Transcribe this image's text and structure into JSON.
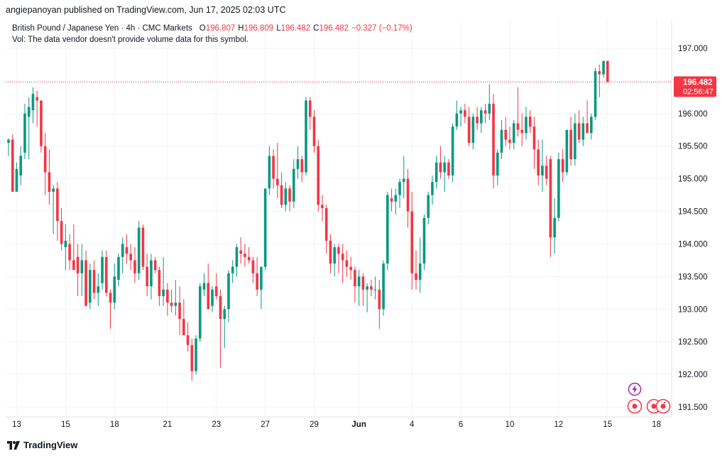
{
  "header": {
    "publisher_line": "angiepanoyan published on TradingView.com, Jun 17, 2025 02:03 UTC"
  },
  "legend": {
    "symbol": "British Pound / Japanese Yen · 4h · CMC Markets",
    "o_label": "O",
    "o_value": "196.807",
    "h_label": "H",
    "h_value": "196.809",
    "l_label": "L",
    "l_value": "196.482",
    "c_label": "C",
    "c_value": "196.482",
    "change": "−0.327 (−0.17%)",
    "vol_line": "Vol: The data vendor doesn't provide volume data for this symbol."
  },
  "price_label": {
    "price": "196.482",
    "countdown": "02:56:47"
  },
  "footer": {
    "brand": "TradingView"
  },
  "colors": {
    "up": "#089981",
    "down": "#f23645",
    "grid": "#f0f3fa",
    "axis_text": "#131722",
    "events": "#f23645",
    "dividend": "#9c27b0"
  },
  "chart_data": {
    "type": "candlestick",
    "title": "British Pound / Japanese Yen · 4h · CMC Markets",
    "ylim": [
      191.35,
      197.35
    ],
    "y_ticks": [
      "197.000",
      "196.500",
      "196.000",
      "195.500",
      "195.000",
      "194.500",
      "194.000",
      "193.500",
      "193.000",
      "192.500",
      "192.000",
      "191.500"
    ],
    "y_tick_values": [
      197.0,
      196.5,
      196.0,
      195.5,
      195.0,
      194.5,
      194.0,
      193.5,
      193.0,
      192.5,
      192.0,
      191.5
    ],
    "x_ticks": [
      {
        "label": "13",
        "index": 2
      },
      {
        "label": "15",
        "index": 14
      },
      {
        "label": "18",
        "index": 26
      },
      {
        "label": "21",
        "index": 39
      },
      {
        "label": "23",
        "index": 51
      },
      {
        "label": "27",
        "index": 63
      },
      {
        "label": "29",
        "index": 75
      },
      {
        "label": "Jun",
        "index": 86
      },
      {
        "label": "4",
        "index": 99
      },
      {
        "label": "6",
        "index": 111
      },
      {
        "label": "10",
        "index": 123
      },
      {
        "label": "12",
        "index": 135
      },
      {
        "label": "15",
        "index": 147
      },
      {
        "label": "18",
        "index": 159
      }
    ],
    "last_price": 196.482,
    "candles": [
      {
        "o": 195.55,
        "h": 195.62,
        "l": 195.35,
        "c": 195.6
      },
      {
        "o": 195.6,
        "h": 195.68,
        "l": 194.8,
        "c": 194.8
      },
      {
        "o": 194.8,
        "h": 195.25,
        "l": 194.8,
        "c": 195.15
      },
      {
        "o": 195.05,
        "h": 195.5,
        "l": 194.9,
        "c": 195.35
      },
      {
        "o": 195.4,
        "h": 196.15,
        "l": 195.3,
        "c": 196.0
      },
      {
        "o": 195.95,
        "h": 196.25,
        "l": 195.3,
        "c": 196.1
      },
      {
        "o": 196.05,
        "h": 196.4,
        "l": 195.85,
        "c": 196.3
      },
      {
        "o": 196.25,
        "h": 196.35,
        "l": 195.8,
        "c": 196.2
      },
      {
        "o": 196.2,
        "h": 196.2,
        "l": 195.4,
        "c": 195.5
      },
      {
        "o": 195.5,
        "h": 195.7,
        "l": 194.75,
        "c": 195.1
      },
      {
        "o": 195.1,
        "h": 195.45,
        "l": 194.6,
        "c": 194.8
      },
      {
        "o": 194.8,
        "h": 194.9,
        "l": 194.15,
        "c": 194.85
      },
      {
        "o": 194.85,
        "h": 194.95,
        "l": 194.05,
        "c": 194.35
      },
      {
        "o": 194.35,
        "h": 194.55,
        "l": 193.9,
        "c": 194.0
      },
      {
        "o": 193.95,
        "h": 194.3,
        "l": 193.6,
        "c": 194.05
      },
      {
        "o": 194.0,
        "h": 194.15,
        "l": 193.6,
        "c": 193.75
      },
      {
        "o": 193.75,
        "h": 194.3,
        "l": 193.6,
        "c": 193.6
      },
      {
        "o": 193.8,
        "h": 194.0,
        "l": 193.2,
        "c": 193.55
      },
      {
        "o": 193.55,
        "h": 194.0,
        "l": 193.2,
        "c": 193.75
      },
      {
        "o": 193.75,
        "h": 193.9,
        "l": 193.05,
        "c": 193.05
      },
      {
        "o": 193.1,
        "h": 193.7,
        "l": 193.0,
        "c": 193.6
      },
      {
        "o": 193.6,
        "h": 193.75,
        "l": 193.15,
        "c": 193.25
      },
      {
        "o": 193.25,
        "h": 193.55,
        "l": 193.05,
        "c": 193.35
      },
      {
        "o": 193.4,
        "h": 193.9,
        "l": 193.3,
        "c": 193.8
      },
      {
        "o": 193.8,
        "h": 193.9,
        "l": 193.2,
        "c": 193.25
      },
      {
        "o": 193.25,
        "h": 193.3,
        "l": 192.7,
        "c": 193.1
      },
      {
        "o": 193.1,
        "h": 193.7,
        "l": 193.0,
        "c": 193.5
      },
      {
        "o": 193.45,
        "h": 193.85,
        "l": 193.35,
        "c": 193.8
      },
      {
        "o": 193.8,
        "h": 194.1,
        "l": 193.55,
        "c": 194.0
      },
      {
        "o": 193.95,
        "h": 194.15,
        "l": 193.7,
        "c": 193.85
      },
      {
        "o": 193.85,
        "h": 194.0,
        "l": 193.6,
        "c": 193.75
      },
      {
        "o": 193.75,
        "h": 193.95,
        "l": 193.4,
        "c": 193.55
      },
      {
        "o": 193.55,
        "h": 194.35,
        "l": 193.45,
        "c": 194.25
      },
      {
        "o": 194.25,
        "h": 194.3,
        "l": 193.6,
        "c": 193.65
      },
      {
        "o": 193.65,
        "h": 193.85,
        "l": 193.2,
        "c": 193.35
      },
      {
        "o": 193.35,
        "h": 193.85,
        "l": 193.15,
        "c": 193.75
      },
      {
        "o": 193.75,
        "h": 193.8,
        "l": 193.55,
        "c": 193.6
      },
      {
        "o": 193.6,
        "h": 193.65,
        "l": 193.05,
        "c": 193.2
      },
      {
        "o": 193.2,
        "h": 193.8,
        "l": 193.05,
        "c": 193.3
      },
      {
        "o": 193.3,
        "h": 193.4,
        "l": 192.9,
        "c": 193.1
      },
      {
        "o": 193.1,
        "h": 193.3,
        "l": 192.95,
        "c": 193.05
      },
      {
        "o": 193.05,
        "h": 193.45,
        "l": 192.9,
        "c": 193.1
      },
      {
        "o": 193.1,
        "h": 193.35,
        "l": 192.6,
        "c": 192.85
      },
      {
        "o": 192.85,
        "h": 193.15,
        "l": 192.6,
        "c": 192.6
      },
      {
        "o": 192.6,
        "h": 192.8,
        "l": 192.35,
        "c": 192.45
      },
      {
        "o": 192.45,
        "h": 192.55,
        "l": 191.9,
        "c": 192.05
      },
      {
        "o": 192.05,
        "h": 192.6,
        "l": 192.0,
        "c": 192.55
      },
      {
        "o": 192.55,
        "h": 193.4,
        "l": 192.5,
        "c": 193.35
      },
      {
        "o": 193.3,
        "h": 193.55,
        "l": 193.2,
        "c": 193.4
      },
      {
        "o": 193.4,
        "h": 193.7,
        "l": 193.0,
        "c": 193.0
      },
      {
        "o": 193.05,
        "h": 193.35,
        "l": 192.95,
        "c": 193.3
      },
      {
        "o": 193.35,
        "h": 193.55,
        "l": 193.15,
        "c": 193.2
      },
      {
        "o": 193.2,
        "h": 193.3,
        "l": 192.1,
        "c": 192.85
      },
      {
        "o": 192.85,
        "h": 193.05,
        "l": 192.4,
        "c": 193.0
      },
      {
        "o": 193.0,
        "h": 193.6,
        "l": 192.8,
        "c": 193.55
      },
      {
        "o": 193.55,
        "h": 193.75,
        "l": 193.4,
        "c": 193.65
      },
      {
        "o": 193.65,
        "h": 194.0,
        "l": 193.5,
        "c": 193.95
      },
      {
        "o": 193.9,
        "h": 194.1,
        "l": 193.7,
        "c": 193.85
      },
      {
        "o": 193.85,
        "h": 194.0,
        "l": 193.65,
        "c": 193.8
      },
      {
        "o": 193.8,
        "h": 193.95,
        "l": 193.7,
        "c": 193.75
      },
      {
        "o": 193.75,
        "h": 193.8,
        "l": 193.4,
        "c": 193.55
      },
      {
        "o": 193.55,
        "h": 193.8,
        "l": 193.2,
        "c": 193.3
      },
      {
        "o": 193.3,
        "h": 193.65,
        "l": 193.0,
        "c": 193.65
      },
      {
        "o": 193.65,
        "h": 194.85,
        "l": 193.6,
        "c": 194.85
      },
      {
        "o": 194.85,
        "h": 195.5,
        "l": 194.75,
        "c": 195.35
      },
      {
        "o": 195.35,
        "h": 195.45,
        "l": 194.85,
        "c": 195.0
      },
      {
        "o": 195.0,
        "h": 195.55,
        "l": 194.7,
        "c": 194.9
      },
      {
        "o": 194.9,
        "h": 195.1,
        "l": 194.55,
        "c": 194.6
      },
      {
        "o": 194.6,
        "h": 194.95,
        "l": 194.5,
        "c": 194.85
      },
      {
        "o": 194.85,
        "h": 194.9,
        "l": 194.5,
        "c": 194.65
      },
      {
        "o": 194.65,
        "h": 195.3,
        "l": 194.55,
        "c": 195.15
      },
      {
        "o": 195.15,
        "h": 195.5,
        "l": 195.0,
        "c": 195.3
      },
      {
        "o": 195.3,
        "h": 195.35,
        "l": 194.95,
        "c": 195.1
      },
      {
        "o": 195.1,
        "h": 196.25,
        "l": 195.05,
        "c": 196.2
      },
      {
        "o": 196.2,
        "h": 196.25,
        "l": 195.75,
        "c": 195.95
      },
      {
        "o": 195.95,
        "h": 196.05,
        "l": 195.4,
        "c": 195.5
      },
      {
        "o": 195.5,
        "h": 195.6,
        "l": 194.5,
        "c": 194.6
      },
      {
        "o": 194.6,
        "h": 194.75,
        "l": 194.35,
        "c": 194.55
      },
      {
        "o": 194.55,
        "h": 194.6,
        "l": 193.85,
        "c": 194.05
      },
      {
        "o": 194.05,
        "h": 194.15,
        "l": 193.55,
        "c": 193.7
      },
      {
        "o": 193.7,
        "h": 194.0,
        "l": 193.5,
        "c": 193.95
      },
      {
        "o": 193.95,
        "h": 194.0,
        "l": 193.55,
        "c": 193.85
      },
      {
        "o": 193.85,
        "h": 194.0,
        "l": 193.4,
        "c": 193.75
      },
      {
        "o": 193.75,
        "h": 193.9,
        "l": 193.5,
        "c": 193.65
      },
      {
        "o": 193.65,
        "h": 193.8,
        "l": 193.45,
        "c": 193.6
      },
      {
        "o": 193.6,
        "h": 193.65,
        "l": 193.1,
        "c": 193.35
      },
      {
        "o": 193.35,
        "h": 193.6,
        "l": 193.05,
        "c": 193.5
      },
      {
        "o": 193.5,
        "h": 193.55,
        "l": 193.05,
        "c": 193.3
      },
      {
        "o": 193.3,
        "h": 193.4,
        "l": 192.95,
        "c": 193.35
      },
      {
        "o": 193.35,
        "h": 193.45,
        "l": 193.2,
        "c": 193.3
      },
      {
        "o": 193.3,
        "h": 193.5,
        "l": 193.15,
        "c": 193.3
      },
      {
        "o": 193.3,
        "h": 193.45,
        "l": 192.7,
        "c": 193.0
      },
      {
        "o": 193.0,
        "h": 193.75,
        "l": 192.9,
        "c": 193.7
      },
      {
        "o": 193.7,
        "h": 194.8,
        "l": 193.6,
        "c": 194.75
      },
      {
        "o": 194.7,
        "h": 194.85,
        "l": 194.5,
        "c": 194.65
      },
      {
        "o": 194.65,
        "h": 194.85,
        "l": 194.45,
        "c": 194.75
      },
      {
        "o": 194.75,
        "h": 195.0,
        "l": 194.55,
        "c": 194.95
      },
      {
        "o": 194.95,
        "h": 195.35,
        "l": 194.7,
        "c": 195.0
      },
      {
        "o": 195.0,
        "h": 195.15,
        "l": 194.25,
        "c": 194.5
      },
      {
        "o": 194.5,
        "h": 194.8,
        "l": 193.3,
        "c": 193.55
      },
      {
        "o": 193.55,
        "h": 193.9,
        "l": 193.3,
        "c": 193.45
      },
      {
        "o": 193.45,
        "h": 194.1,
        "l": 193.25,
        "c": 193.7
      },
      {
        "o": 193.7,
        "h": 194.45,
        "l": 193.6,
        "c": 194.4
      },
      {
        "o": 194.4,
        "h": 194.8,
        "l": 194.3,
        "c": 194.75
      },
      {
        "o": 194.75,
        "h": 195.05,
        "l": 194.6,
        "c": 194.95
      },
      {
        "o": 194.95,
        "h": 195.35,
        "l": 194.85,
        "c": 195.25
      },
      {
        "o": 195.25,
        "h": 195.5,
        "l": 195.0,
        "c": 195.1
      },
      {
        "o": 195.1,
        "h": 195.35,
        "l": 194.8,
        "c": 195.25
      },
      {
        "o": 195.25,
        "h": 195.3,
        "l": 195.0,
        "c": 195.05
      },
      {
        "o": 195.05,
        "h": 195.85,
        "l": 194.95,
        "c": 195.8
      },
      {
        "o": 195.8,
        "h": 196.2,
        "l": 195.75,
        "c": 196.0
      },
      {
        "o": 196.0,
        "h": 196.1,
        "l": 195.8,
        "c": 196.05
      },
      {
        "o": 196.05,
        "h": 196.15,
        "l": 195.85,
        "c": 195.95
      },
      {
        "o": 195.95,
        "h": 196.1,
        "l": 195.5,
        "c": 195.55
      },
      {
        "o": 195.55,
        "h": 196.0,
        "l": 195.45,
        "c": 195.95
      },
      {
        "o": 195.95,
        "h": 196.1,
        "l": 195.75,
        "c": 195.85
      },
      {
        "o": 195.85,
        "h": 196.1,
        "l": 195.7,
        "c": 196.05
      },
      {
        "o": 196.05,
        "h": 196.15,
        "l": 195.85,
        "c": 196.0
      },
      {
        "o": 196.0,
        "h": 196.45,
        "l": 195.9,
        "c": 196.15
      },
      {
        "o": 196.15,
        "h": 196.3,
        "l": 194.85,
        "c": 195.05
      },
      {
        "o": 195.05,
        "h": 195.45,
        "l": 194.9,
        "c": 195.4
      },
      {
        "o": 195.4,
        "h": 195.9,
        "l": 195.3,
        "c": 195.75
      },
      {
        "o": 195.75,
        "h": 195.95,
        "l": 195.5,
        "c": 195.6
      },
      {
        "o": 195.6,
        "h": 195.8,
        "l": 195.45,
        "c": 195.55
      },
      {
        "o": 195.55,
        "h": 195.9,
        "l": 195.45,
        "c": 195.85
      },
      {
        "o": 195.85,
        "h": 196.4,
        "l": 195.65,
        "c": 195.75
      },
      {
        "o": 195.75,
        "h": 196.0,
        "l": 195.5,
        "c": 195.7
      },
      {
        "o": 195.7,
        "h": 196.1,
        "l": 195.6,
        "c": 195.95
      },
      {
        "o": 195.95,
        "h": 196.05,
        "l": 195.7,
        "c": 195.8
      },
      {
        "o": 195.8,
        "h": 195.95,
        "l": 195.15,
        "c": 195.45
      },
      {
        "o": 195.45,
        "h": 195.6,
        "l": 194.9,
        "c": 195.05
      },
      {
        "o": 195.05,
        "h": 195.6,
        "l": 194.8,
        "c": 195.2
      },
      {
        "o": 195.2,
        "h": 195.35,
        "l": 194.9,
        "c": 195.0
      },
      {
        "o": 195.3,
        "h": 195.35,
        "l": 193.8,
        "c": 194.1
      },
      {
        "o": 194.1,
        "h": 194.7,
        "l": 193.85,
        "c": 194.4
      },
      {
        "o": 194.4,
        "h": 195.4,
        "l": 194.35,
        "c": 195.3
      },
      {
        "o": 195.3,
        "h": 195.45,
        "l": 194.95,
        "c": 195.1
      },
      {
        "o": 195.1,
        "h": 195.75,
        "l": 195.05,
        "c": 195.75
      },
      {
        "o": 195.75,
        "h": 195.95,
        "l": 195.2,
        "c": 195.3
      },
      {
        "o": 195.3,
        "h": 196.0,
        "l": 195.2,
        "c": 195.85
      },
      {
        "o": 195.85,
        "h": 196.05,
        "l": 195.55,
        "c": 195.6
      },
      {
        "o": 195.6,
        "h": 195.95,
        "l": 195.5,
        "c": 195.85
      },
      {
        "o": 195.85,
        "h": 196.2,
        "l": 195.7,
        "c": 195.7
      },
      {
        "o": 195.7,
        "h": 196.0,
        "l": 195.6,
        "c": 195.95
      },
      {
        "o": 195.95,
        "h": 196.7,
        "l": 195.9,
        "c": 196.65
      },
      {
        "o": 196.65,
        "h": 196.75,
        "l": 196.25,
        "c": 196.6
      },
      {
        "o": 196.6,
        "h": 196.8,
        "l": 196.55,
        "c": 196.807
      },
      {
        "o": 196.807,
        "h": 196.809,
        "l": 196.482,
        "c": 196.482
      }
    ]
  }
}
